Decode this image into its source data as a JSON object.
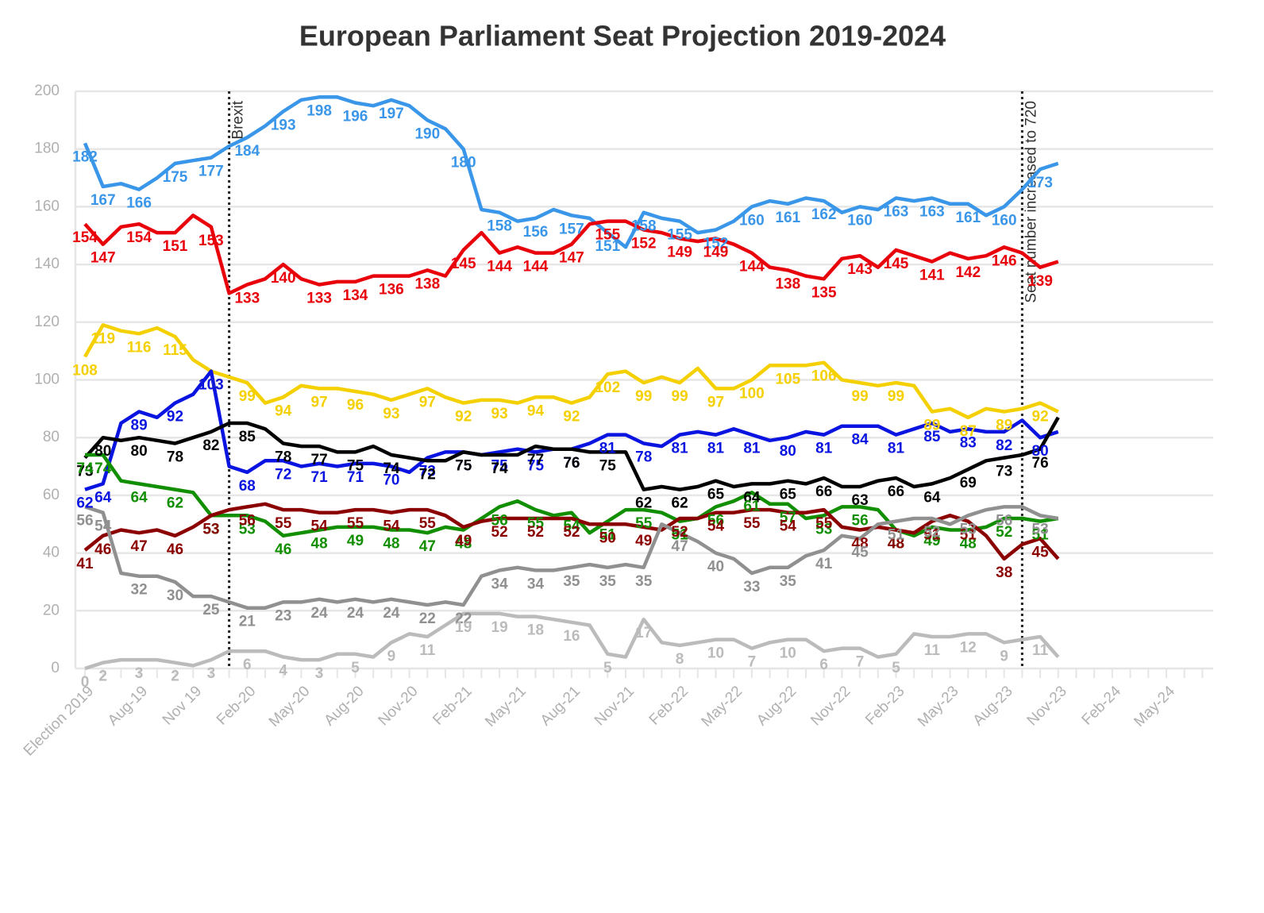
{
  "chart_data": {
    "type": "line",
    "title": "European Parliament Seat Projection 2019-2024",
    "categories": [
      "Election 2019",
      null,
      null,
      "Aug-19",
      null,
      null,
      "Nov 19",
      null,
      null,
      "Feb-20",
      null,
      null,
      "May-20",
      null,
      null,
      "Aug-20",
      null,
      null,
      "Nov-20",
      null,
      null,
      "Feb-21",
      null,
      null,
      "May-21",
      null,
      null,
      "Aug-21",
      null,
      null,
      "Nov-21",
      null,
      null,
      "Feb-22",
      null,
      null,
      "May-22",
      null,
      null,
      "Aug-22",
      null,
      null,
      "Nov-22",
      null,
      null,
      "Feb-23",
      null,
      null,
      "May-23",
      null,
      null,
      "Aug-23",
      null,
      null,
      "Nov-23",
      null,
      null,
      "Feb-24",
      null,
      null,
      "May-24",
      null,
      null
    ],
    "series": [
      {
        "color": "#3a96e8",
        "values": [
          182,
          167,
          168,
          166,
          170,
          175,
          176,
          177,
          181,
          184,
          188,
          193,
          197,
          198,
          198,
          196,
          195,
          197,
          195,
          190,
          187,
          180,
          159,
          158,
          155,
          156,
          159,
          157,
          156,
          151,
          146,
          158,
          156,
          155,
          151,
          152,
          155,
          160,
          162,
          161,
          163,
          162,
          158,
          160,
          159,
          163,
          162,
          163,
          161,
          161,
          157,
          160,
          166,
          173,
          175,
          null,
          null,
          null,
          null,
          null,
          null,
          null,
          null
        ]
      },
      {
        "color": "#e8000b",
        "values": [
          154,
          147,
          153,
          154,
          151,
          151,
          157,
          153,
          130,
          133,
          135,
          140,
          135,
          133,
          134,
          134,
          136,
          136,
          136,
          138,
          136,
          145,
          151,
          144,
          146,
          144,
          144,
          147,
          154,
          155,
          155,
          152,
          151,
          149,
          148,
          149,
          147,
          144,
          139,
          138,
          136,
          135,
          142,
          143,
          139,
          145,
          143,
          141,
          144,
          142,
          143,
          146,
          144,
          139,
          141,
          null,
          null,
          null,
          null,
          null,
          null,
          null,
          null
        ]
      },
      {
        "color": "#f5d000",
        "values": [
          108,
          119,
          117,
          116,
          118,
          115,
          107,
          103,
          101,
          99,
          92,
          94,
          98,
          97,
          97,
          96,
          95,
          93,
          95,
          97,
          94,
          92,
          93,
          93,
          92,
          94,
          94,
          92,
          94,
          102,
          103,
          99,
          101,
          99,
          104,
          97,
          97,
          100,
          105,
          105,
          105,
          106,
          100,
          99,
          98,
          99,
          98,
          89,
          90,
          87,
          90,
          89,
          90,
          92,
          89,
          null,
          null,
          null,
          null,
          null,
          null,
          null,
          null
        ]
      },
      {
        "color": "#0a14e0",
        "values": [
          62,
          64,
          85,
          89,
          87,
          92,
          95,
          103,
          70,
          68,
          72,
          72,
          70,
          71,
          70,
          71,
          71,
          70,
          68,
          73,
          75,
          75,
          74,
          75,
          76,
          75,
          76,
          76,
          78,
          81,
          81,
          78,
          77,
          81,
          82,
          81,
          83,
          81,
          79,
          80,
          82,
          81,
          84,
          84,
          84,
          81,
          83,
          85,
          82,
          83,
          82,
          82,
          86,
          80,
          82,
          null,
          null,
          null,
          null,
          null,
          null,
          null,
          null
        ]
      },
      {
        "color": "#000000",
        "values": [
          73,
          80,
          79,
          80,
          79,
          78,
          80,
          82,
          85,
          85,
          83,
          78,
          77,
          77,
          75,
          75,
          77,
          74,
          73,
          72,
          72,
          75,
          74,
          74,
          74,
          77,
          76,
          76,
          75,
          75,
          75,
          62,
          63,
          62,
          63,
          65,
          63,
          64,
          64,
          65,
          64,
          66,
          63,
          63,
          65,
          66,
          63,
          64,
          66,
          69,
          72,
          73,
          74,
          76,
          87,
          null,
          null,
          null,
          null,
          null,
          null,
          null,
          null
        ]
      },
      {
        "color": "#118f00",
        "values": [
          74,
          74,
          65,
          64,
          63,
          62,
          61,
          53,
          53,
          53,
          51,
          46,
          47,
          48,
          49,
          49,
          49,
          48,
          48,
          47,
          49,
          48,
          52,
          56,
          58,
          55,
          53,
          54,
          47,
          51,
          55,
          55,
          54,
          51,
          52,
          56,
          58,
          61,
          57,
          57,
          52,
          53,
          56,
          56,
          55,
          48,
          46,
          49,
          48,
          48,
          49,
          52,
          52,
          51,
          52,
          null,
          null,
          null,
          null,
          null,
          null,
          null,
          null
        ]
      },
      {
        "color": "#8b0000",
        "values": [
          41,
          46,
          48,
          47,
          48,
          46,
          49,
          53,
          55,
          56,
          57,
          55,
          55,
          54,
          54,
          55,
          55,
          54,
          55,
          55,
          53,
          49,
          51,
          52,
          52,
          52,
          52,
          52,
          50,
          50,
          50,
          49,
          48,
          52,
          52,
          54,
          54,
          55,
          55,
          54,
          54,
          55,
          49,
          48,
          49,
          48,
          47,
          51,
          53,
          51,
          46,
          38,
          43,
          45,
          38,
          null,
          null,
          null,
          null,
          null,
          null,
          null,
          null
        ]
      },
      {
        "color": "#909090",
        "values": [
          56,
          54,
          33,
          32,
          32,
          30,
          25,
          25,
          23,
          21,
          21,
          23,
          23,
          24,
          23,
          24,
          23,
          24,
          23,
          22,
          23,
          22,
          32,
          34,
          35,
          34,
          34,
          35,
          36,
          35,
          36,
          35,
          50,
          47,
          44,
          40,
          38,
          33,
          35,
          35,
          39,
          41,
          46,
          45,
          50,
          51,
          52,
          52,
          50,
          53,
          55,
          56,
          56,
          53,
          52,
          null,
          null,
          null,
          null,
          null,
          null,
          null,
          null
        ]
      },
      {
        "color": "#bbbbbb",
        "values": [
          0,
          2,
          3,
          3,
          3,
          2,
          1,
          3,
          6,
          6,
          6,
          4,
          3,
          3,
          5,
          5,
          4,
          9,
          12,
          11,
          15,
          19,
          19,
          19,
          18,
          18,
          17,
          16,
          15,
          5,
          4,
          17,
          9,
          8,
          9,
          10,
          10,
          7,
          9,
          10,
          10,
          6,
          7,
          7,
          4,
          5,
          12,
          11,
          11,
          12,
          12,
          9,
          10,
          11,
          4,
          null,
          null,
          null,
          null,
          null,
          null,
          null,
          null
        ]
      }
    ],
    "ylim": [
      0,
      200
    ],
    "yticks": [
      0,
      20,
      40,
      60,
      80,
      100,
      120,
      140,
      160,
      180,
      200
    ],
    "grid": true,
    "annotations": [
      {
        "text": "Brexit",
        "x": 8
      },
      {
        "text": "Seat number increased to 720",
        "x": 52
      }
    ]
  }
}
